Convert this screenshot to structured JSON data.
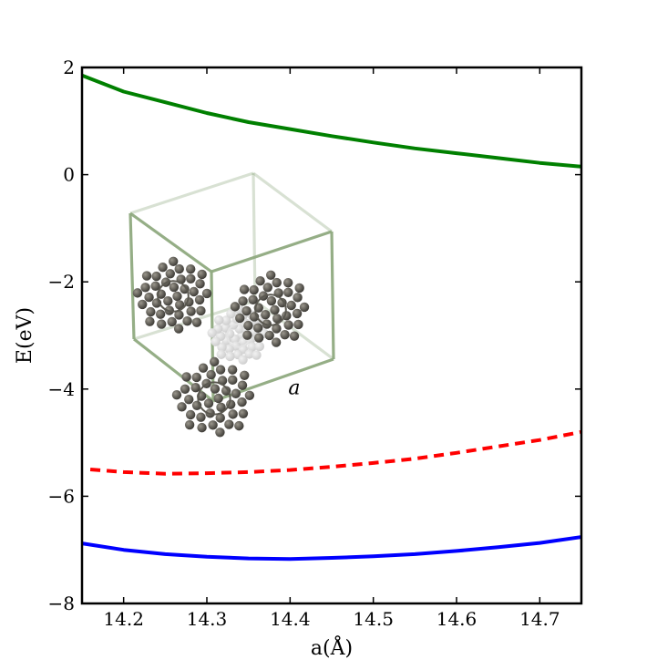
{
  "chart_data": {
    "type": "line",
    "xlabel": "a(Å)",
    "ylabel": "E(eV)",
    "xlim": [
      14.15,
      14.75
    ],
    "ylim": [
      -8,
      2
    ],
    "xticks": [
      14.2,
      14.3,
      14.4,
      14.5,
      14.6,
      14.7
    ],
    "xtick_labels": [
      "14.2",
      "14.3",
      "14.4",
      "14.5",
      "14.6",
      "14.7"
    ],
    "yticks": [
      -8,
      -6,
      -4,
      -2,
      0,
      2
    ],
    "ytick_labels": [
      "−8",
      "−6",
      "−4",
      "−2",
      "0",
      "2"
    ],
    "grid": false,
    "legend": "none",
    "annotations": [
      {
        "text": "a",
        "x": 14.405,
        "y": -4.1
      }
    ],
    "inset": {
      "description_icon": "fcc-c60-unit-cell-icon"
    },
    "series": [
      {
        "color": "#008000",
        "style": "solid",
        "x": [
          14.15,
          14.2,
          14.25,
          14.3,
          14.35,
          14.4,
          14.45,
          14.5,
          14.55,
          14.6,
          14.65,
          14.7,
          14.75
        ],
        "y": [
          1.85,
          1.55,
          1.35,
          1.15,
          0.98,
          0.85,
          0.72,
          0.6,
          0.49,
          0.4,
          0.31,
          0.22,
          0.15
        ]
      },
      {
        "color": "#ff0000",
        "style": "dashed",
        "x": [
          14.16,
          14.2,
          14.25,
          14.3,
          14.35,
          14.4,
          14.45,
          14.5,
          14.55,
          14.6,
          14.65,
          14.7,
          14.75
        ],
        "y": [
          -5.5,
          -5.55,
          -5.58,
          -5.57,
          -5.55,
          -5.51,
          -5.45,
          -5.38,
          -5.3,
          -5.19,
          -5.07,
          -4.95,
          -4.8
        ]
      },
      {
        "color": "#0000ff",
        "style": "solid",
        "x": [
          14.15,
          14.2,
          14.25,
          14.3,
          14.35,
          14.4,
          14.45,
          14.5,
          14.55,
          14.6,
          14.65,
          14.7,
          14.75
        ],
        "y": [
          -6.88,
          -7.0,
          -7.08,
          -7.13,
          -7.16,
          -7.17,
          -7.15,
          -7.12,
          -7.08,
          -7.02,
          -6.95,
          -6.87,
          -6.76
        ]
      }
    ]
  }
}
